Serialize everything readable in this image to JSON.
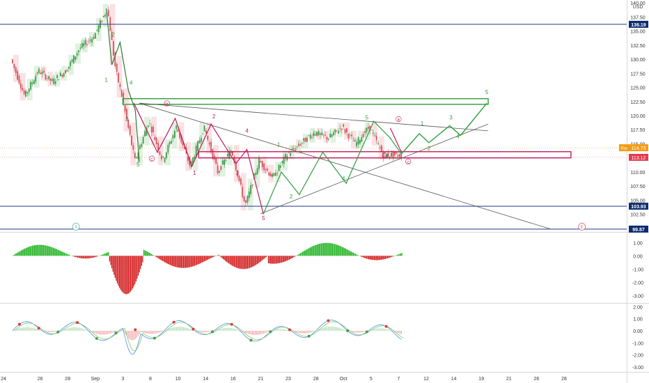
{
  "currency": "USD",
  "colors": {
    "candle_up": "#c8e6c9",
    "candle_down": "#f8c8cc",
    "wave_green": "#2e9e3a",
    "wave_red": "#c2185b",
    "hline": "#1a3a8a",
    "channel": "#555555",
    "macd_up": "#26b526",
    "macd_down": "#d32020",
    "stoch_k": "#4a90e2",
    "stoch_d": "#7cc36d"
  },
  "chart_data": [
    {
      "type": "candlestick",
      "price_axis": {
        "ylim": [
          99.5,
          140.5
        ],
        "ticks": [
          "140.00",
          "137.50",
          "135.00",
          "132.50",
          "130.00",
          "127.50",
          "125.00",
          "122.50",
          "120.00",
          "117.50",
          "115.00",
          "112.50",
          "110.00",
          "107.50",
          "105.00",
          "102.50",
          "100.00"
        ],
        "tick_values": [
          140.0,
          137.5,
          135.0,
          132.5,
          130.0,
          127.5,
          125.0,
          122.5,
          120.0,
          117.5,
          115.0,
          112.5,
          110.0,
          107.5,
          105.0,
          102.5,
          100.0
        ]
      },
      "time_axis": {
        "labels": [
          "24",
          "26",
          "28",
          "Sep",
          "3",
          "8",
          "10",
          "14",
          "16",
          "21",
          "23",
          "28",
          "Oct",
          "5",
          "7",
          "12",
          "14",
          "19",
          "21",
          "26",
          "28"
        ],
        "positions": [
          0,
          2,
          4,
          6,
          8,
          10,
          12,
          14,
          16,
          18,
          20,
          22,
          24,
          26,
          28,
          30,
          32,
          34,
          36,
          38,
          40
        ]
      },
      "price_series": {
        "t": [
          0,
          1,
          2,
          3,
          4,
          5,
          6,
          7,
          7.6,
          8,
          9,
          10,
          11,
          12,
          13,
          14,
          15,
          16,
          17,
          18,
          19,
          20,
          21,
          22,
          23,
          24,
          25,
          26,
          27,
          28
        ],
        "close": [
          130,
          123.5,
          128,
          126,
          128,
          132,
          134,
          139,
          128,
          124,
          112,
          119,
          112,
          118,
          111,
          118,
          110,
          114,
          104,
          112,
          109,
          113,
          115,
          117,
          116,
          118,
          115,
          118,
          113,
          113
        ]
      },
      "horizontal_levels": [
        {
          "value": 136.19,
          "label": "136.19"
        },
        {
          "value": 103.93,
          "label": "103.93"
        },
        {
          "value": 99.87,
          "label": "99.87"
        }
      ],
      "current_price": {
        "label": "Pre",
        "value": "114.73"
      },
      "last_price": {
        "value": "113.12"
      },
      "zones": [
        {
          "name": "green-target-zone",
          "x_from": 8,
          "x_to": 34.5,
          "y_top": 123.0,
          "y_bottom": 122.0
        },
        {
          "name": "red-support-zone",
          "x_from": 13.5,
          "x_to": 40.5,
          "y_top": 113.6,
          "y_bottom": 112.5
        }
      ],
      "wave_labels_green": [
        "2",
        "1",
        "4",
        "3",
        "5",
        "1",
        "2",
        "3",
        "4",
        "5",
        "1",
        "2",
        "3",
        "4",
        "5"
      ],
      "wave_labels_red": [
        "B",
        "1",
        "2",
        "3",
        "4",
        "5",
        "C",
        "B",
        "A",
        "C"
      ],
      "markers": [
        "S",
        "E"
      ]
    },
    {
      "type": "bar",
      "name": "momentum",
      "ticks": [
        "1.00",
        "0.00",
        "-1.00",
        "-2.00",
        "-3.00"
      ],
      "tick_values": [
        1.0,
        0.0,
        -1.0,
        -2.0,
        -3.0
      ],
      "ylim": [
        -3.4,
        1.7
      ]
    },
    {
      "type": "line",
      "name": "oscillator",
      "ticks": [
        "2.00",
        "1.00",
        "0.00",
        "-1.00",
        "-2.00",
        "-3.00"
      ],
      "tick_values": [
        2.0,
        1.0,
        0.0,
        -1.0,
        -2.0,
        -3.0
      ],
      "ylim": [
        -3.3,
        2.2
      ]
    }
  ]
}
